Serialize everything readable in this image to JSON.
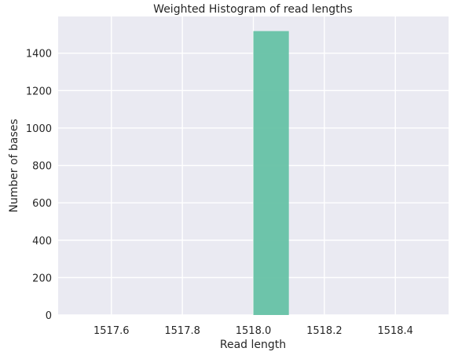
{
  "chart_data": {
    "type": "bar",
    "title": "Weighted Histogram of read lengths",
    "xlabel": "Read length",
    "ylabel": "Number of bases",
    "xlim": [
      1517.45,
      1518.55
    ],
    "ylim": [
      0,
      1596
    ],
    "xticks": [
      1517.6,
      1517.8,
      1518.0,
      1518.2,
      1518.4
    ],
    "xtick_labels": [
      "1517.6",
      "1517.8",
      "1518.0",
      "1518.2",
      "1518.4"
    ],
    "yticks": [
      0,
      200,
      400,
      600,
      800,
      1000,
      1200,
      1400
    ],
    "ytick_labels": [
      "0",
      "200",
      "400",
      "600",
      "800",
      "1000",
      "1200",
      "1400"
    ],
    "bins": [
      {
        "x_start": 1518.0,
        "x_end": 1518.1,
        "value": 1518
      }
    ],
    "grid": true,
    "legend": "none",
    "colors": {
      "background": "#eaeaf2",
      "grid": "#ffffff",
      "bar": "#66c2a5",
      "text": "#262626"
    }
  }
}
